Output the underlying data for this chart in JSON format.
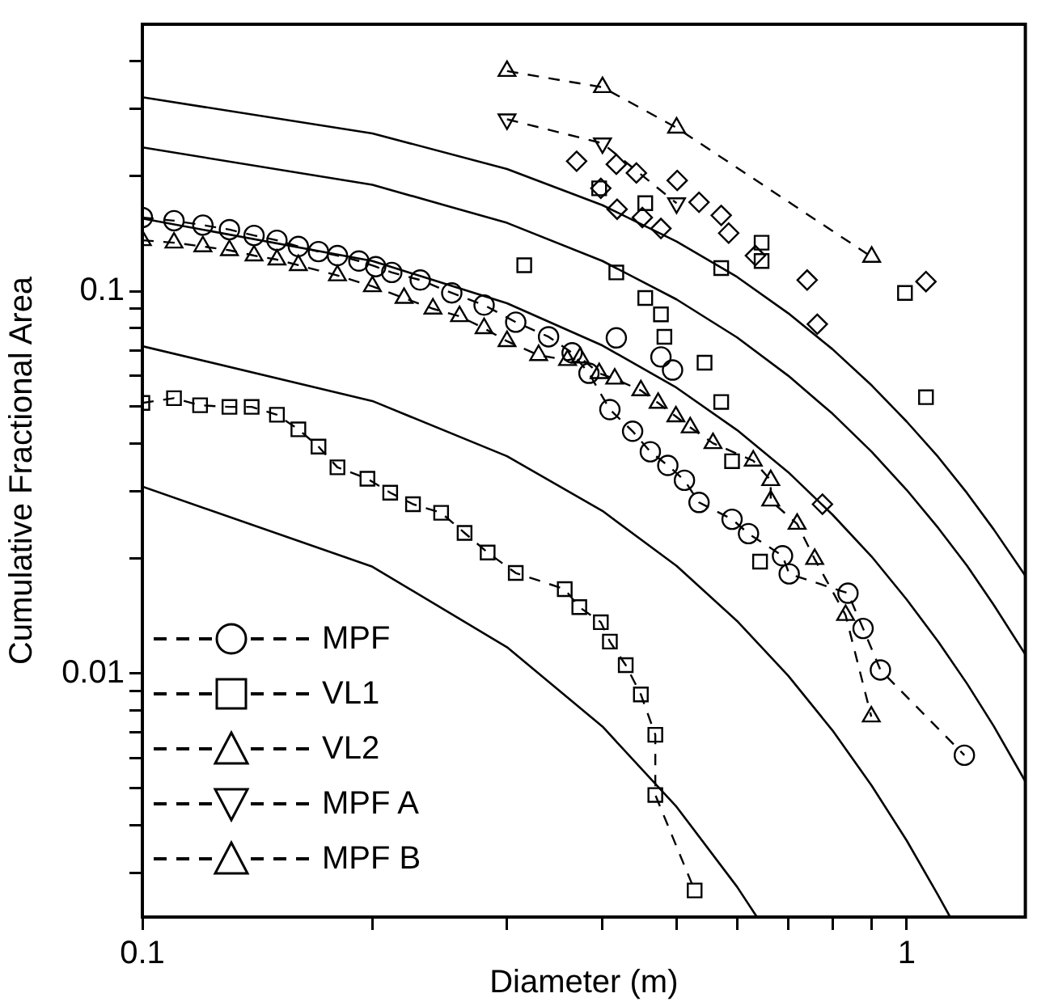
{
  "chart_data": {
    "type": "line",
    "xlabel": "Diameter (m)",
    "ylabel": "Cumulative Fractional Area",
    "log": "xy",
    "grid": false,
    "legend": "bottom left",
    "xlim": [
      0.1,
      1.43
    ],
    "xticks": [
      0.1,
      {
        "value": 0.2,
        "label": null
      },
      {
        "value": 0.3,
        "label": null
      },
      {
        "value": 0.4,
        "label": null
      },
      {
        "value": 0.5,
        "label": null
      },
      {
        "value": 0.6,
        "label": null
      },
      {
        "value": 0.7,
        "label": null
      },
      {
        "value": 0.8,
        "label": null
      },
      {
        "value": 0.9,
        "label": null
      },
      1
    ],
    "ylim": [
      0.0023,
      0.5
    ],
    "yticks": [
      {
        "value": 0.003,
        "label": null
      },
      {
        "value": 0.004,
        "label": null
      },
      {
        "value": 0.005,
        "label": null
      },
      {
        "value": 0.006,
        "label": null
      },
      {
        "value": 0.007,
        "label": null
      },
      {
        "value": 0.008,
        "label": null
      },
      {
        "value": 0.009,
        "label": null
      },
      0.01,
      {
        "value": 0.02,
        "label": null
      },
      {
        "value": 0.03,
        "label": null
      },
      {
        "value": 0.04,
        "label": null
      },
      {
        "value": 0.05,
        "label": null
      },
      {
        "value": 0.06,
        "label": null
      },
      {
        "value": 0.07,
        "label": null
      },
      {
        "value": 0.08,
        "label": null
      },
      {
        "value": 0.09,
        "label": null
      },
      0.1,
      {
        "value": 0.2,
        "label": null
      },
      {
        "value": 0.3,
        "label": null
      },
      {
        "value": 0.4,
        "label": null
      }
    ],
    "series": [
      {
        "color": "#000000",
        "marker": "none",
        "line_style": "solid",
        "x": [
          0.1,
          0.2,
          0.3,
          0.4,
          0.5,
          0.6,
          0.7,
          0.8,
          0.9,
          1.0,
          1.1,
          1.2,
          1.3,
          1.43
        ],
        "values": [
          0.322,
          0.259,
          0.209,
          0.168,
          0.135,
          0.109,
          0.0876,
          0.0705,
          0.0567,
          0.0456,
          0.0368,
          0.0296,
          0.0238,
          0.018
        ]
      },
      {
        "color": "#000000",
        "marker": "none",
        "line_style": "solid",
        "x": [
          0.1,
          0.2,
          0.3,
          0.4,
          0.5,
          0.6,
          0.7,
          0.8,
          0.9,
          1.0,
          1.1,
          1.2,
          1.3,
          1.43
        ],
        "values": [
          0.238,
          0.19,
          0.151,
          0.12,
          0.0952,
          0.0757,
          0.0601,
          0.0478,
          0.038,
          0.0302,
          0.024,
          0.0191,
          0.0151,
          0.0112
        ]
      },
      {
        "color": "#000000",
        "marker": "none",
        "line_style": "solid",
        "x": [
          0.1,
          0.2,
          0.3,
          0.4,
          0.5,
          0.6,
          0.7,
          0.8,
          0.9,
          1.0,
          1.1,
          1.2,
          1.3,
          1.43
        ],
        "values": [
          0.155,
          0.12,
          0.093,
          0.0721,
          0.0559,
          0.0433,
          0.0336,
          0.026,
          0.0202,
          0.0156,
          0.0121,
          0.00938,
          0.00727,
          0.00521
        ]
      },
      {
        "color": "#000000",
        "marker": "none",
        "line_style": "solid",
        "x": [
          0.1,
          0.2,
          0.3,
          0.4,
          0.5,
          0.6,
          0.7,
          0.8,
          0.9,
          1.0,
          1.1,
          1.14
        ],
        "values": [
          0.0718,
          0.0516,
          0.037,
          0.0266,
          0.0191,
          0.0137,
          0.00985,
          0.00708,
          0.00508,
          0.00365,
          0.00262,
          0.0023
        ]
      },
      {
        "color": "#000000",
        "marker": "none",
        "line_style": "solid",
        "x": [
          0.1,
          0.2,
          0.3,
          0.4,
          0.5,
          0.6,
          0.637
        ],
        "values": [
          0.0308,
          0.019,
          0.0117,
          0.00725,
          0.00447,
          0.00276,
          0.0023
        ]
      },
      {
        "type": "scatter",
        "color": "#000000",
        "marker": "diamond",
        "x": [
          0.37,
          0.398,
          0.417,
          0.418,
          0.443,
          0.451,
          0.477,
          0.501,
          0.535,
          0.572,
          0.585,
          0.634,
          0.741,
          0.764,
          0.776,
          1.06
        ],
        "values": [
          0.219,
          0.186,
          0.215,
          0.164,
          0.204,
          0.156,
          0.146,
          0.195,
          0.171,
          0.158,
          0.142,
          0.124,
          0.107,
          0.082,
          0.0277,
          0.106
        ]
      },
      {
        "type": "scatter",
        "color": "#000000",
        "marker": "square",
        "x": [
          0.316,
          0.396,
          0.417,
          0.455,
          0.455,
          0.477,
          0.482,
          0.544,
          0.572,
          0.591,
          0.643,
          0.646,
          0.646
        ],
        "values": [
          0.117,
          0.186,
          0.112,
          0.17,
          0.096,
          0.087,
          0.076,
          0.065,
          0.0513,
          0.0359,
          0.0196,
          0.134,
          0.12
        ]
      },
      {
        "type": "scatter",
        "color": "#000000",
        "marker": "square",
        "x": [
          0.572,
          0.995,
          1.06
        ],
        "values": [
          0.115,
          0.099,
          0.0528
        ]
      },
      {
        "type": "scatter",
        "color": "#000000",
        "marker": "circle",
        "x": [
          0.417,
          0.477,
          0.494
        ],
        "values": [
          0.0755,
          0.0673,
          0.0622
        ]
      },
      {
        "name": "MPF",
        "color": "#000000",
        "marker": "circle",
        "line_style": "dashed",
        "x": [
          0.1,
          0.11,
          0.12,
          0.13,
          0.14,
          0.15,
          0.16,
          0.17,
          0.18,
          0.192,
          0.202,
          0.212,
          0.231,
          0.254,
          0.28,
          0.308,
          0.34,
          0.365,
          0.384,
          0.409,
          0.438,
          0.462,
          0.487,
          0.512,
          0.535,
          0.591,
          0.621,
          0.688,
          0.702,
          0.838,
          0.877,
          0.924,
          1.19
        ],
        "values": [
          0.156,
          0.153,
          0.149,
          0.145,
          0.14,
          0.136,
          0.131,
          0.127,
          0.124,
          0.12,
          0.116,
          0.112,
          0.107,
          0.099,
          0.092,
          0.083,
          0.076,
          0.069,
          0.061,
          0.049,
          0.043,
          0.038,
          0.035,
          0.032,
          0.028,
          0.0253,
          0.0232,
          0.0203,
          0.0182,
          0.0162,
          0.0131,
          0.0102,
          0.0061
        ]
      },
      {
        "name": "VL1",
        "color": "#000000",
        "marker": "square",
        "line_style": "dashed",
        "x": [
          0.1,
          0.11,
          0.119,
          0.13,
          0.139,
          0.15,
          0.16,
          0.17,
          0.18,
          0.197,
          0.211,
          0.226,
          0.246,
          0.264,
          0.283,
          0.308,
          0.357,
          0.373,
          0.398,
          0.409,
          0.429,
          0.449,
          0.469,
          0.469,
          0.528
        ],
        "values": [
          0.051,
          0.0525,
          0.0503,
          0.0498,
          0.0498,
          0.0475,
          0.0435,
          0.0392,
          0.0346,
          0.0323,
          0.0297,
          0.0277,
          0.0263,
          0.0233,
          0.0207,
          0.0183,
          0.0166,
          0.0149,
          0.0136,
          0.0121,
          0.0105,
          0.0088,
          0.0069,
          0.0048,
          0.0027
        ]
      },
      {
        "name": "VL2",
        "color": "#000000",
        "marker": "triangle",
        "line_style": "dashed",
        "x": [
          0.1,
          0.11,
          0.12,
          0.13,
          0.14,
          0.15,
          0.16,
          0.18,
          0.2,
          0.22,
          0.24,
          0.26,
          0.28,
          0.3,
          0.33,
          0.36,
          0.374,
          0.396,
          0.415,
          0.449,
          0.473,
          0.499,
          0.521,
          0.558,
          0.63,
          0.664,
          0.664,
          0.719,
          0.758,
          0.832,
          0.899
        ],
        "values": [
          0.136,
          0.134,
          0.131,
          0.128,
          0.124,
          0.121,
          0.117,
          0.11,
          0.103,
          0.096,
          0.09,
          0.086,
          0.08,
          0.074,
          0.068,
          0.066,
          0.067,
          0.061,
          0.059,
          0.055,
          0.051,
          0.047,
          0.044,
          0.04,
          0.036,
          0.032,
          0.0283,
          0.0246,
          0.0199,
          0.0142,
          0.0077
        ]
      },
      {
        "name": "MPF A",
        "color": "#000000",
        "marker": "triangle-down",
        "line_style": "dashed",
        "x": [
          0.3,
          0.4,
          0.5
        ],
        "values": [
          0.282,
          0.244,
          0.17
        ]
      },
      {
        "name": "MPF B",
        "color": "#000000",
        "marker": "triangle",
        "line_style": "dashed",
        "x": [
          0.3,
          0.4,
          0.5,
          0.9
        ],
        "values": [
          0.377,
          0.342,
          0.268,
          0.123
        ]
      }
    ]
  }
}
